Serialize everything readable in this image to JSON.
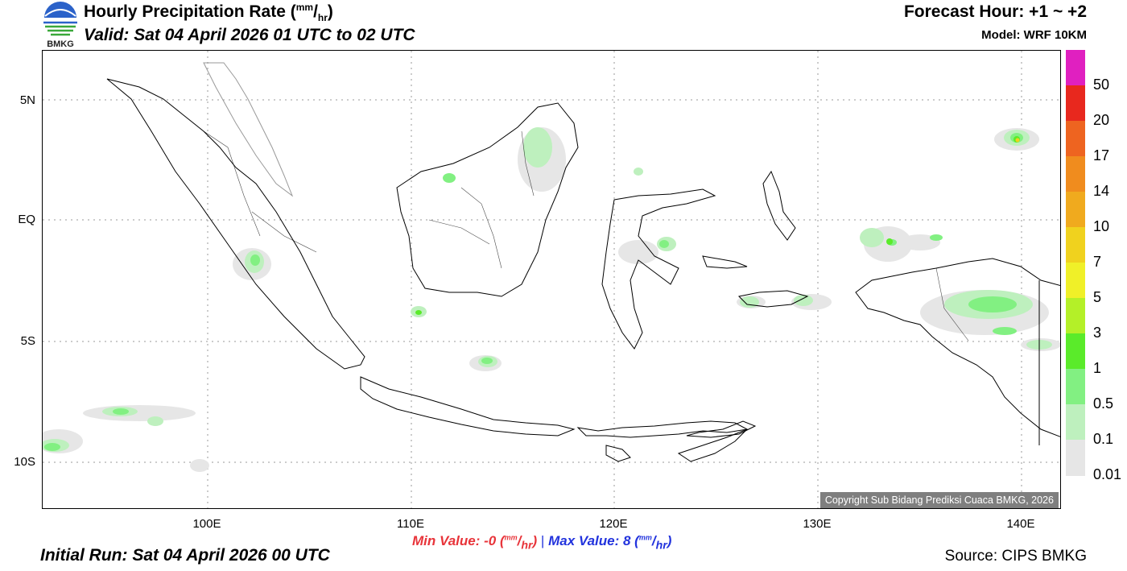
{
  "header": {
    "title_main": "Hourly Precipitation Rate (",
    "title_unit_num": "mm",
    "title_unit_sep": "/",
    "title_unit_den": "hr",
    "title_close": ")",
    "valid": "Valid: Sat 04 April 2026 01 UTC to 02 UTC",
    "forecast_hour": "Forecast Hour: +1 ~ +2",
    "model": "Model: WRF 10KM",
    "logo_text": "BMKG"
  },
  "footer": {
    "initial_run": "Initial Run: Sat 04 April 2026 00 UTC",
    "source": "Source: CIPS BMKG",
    "min_label": "Min Value:  -0 (",
    "max_label": "Max Value:   8 (",
    "unit_num": "mm",
    "unit_den": "hr",
    "unit_close": ")",
    "separator": "|"
  },
  "map": {
    "lat_labels": [
      "5N",
      "EQ",
      "5S",
      "10S"
    ],
    "lon_labels": [
      "100E",
      "110E",
      "120E",
      "130E",
      "140E"
    ],
    "copyright": "Copyright Sub Bidang Prediksi Cuaca BMKG, 2026"
  },
  "legend": {
    "labels": [
      "50",
      "20",
      "17",
      "14",
      "10",
      "7",
      "5",
      "3",
      "1",
      "0.5",
      "0.1",
      "0.01"
    ],
    "colors": [
      "#e020c0",
      "#e8281e",
      "#ee6420",
      "#f08c1e",
      "#f0aa1e",
      "#f0d21e",
      "#f0f028",
      "#b4f028",
      "#5aeb2a",
      "#82f082",
      "#bef0be",
      "#e6e6e6"
    ]
  }
}
